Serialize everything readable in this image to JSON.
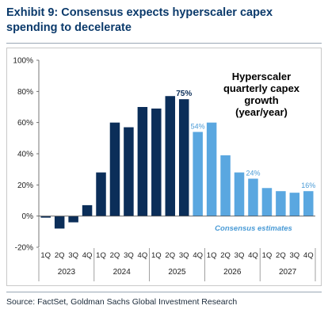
{
  "title": "Exhibit 9: Consensus expects hyperscaler capex spending to decelerate",
  "source": "Source: FactSet, Goldman Sachs Global Investment Research",
  "colors": {
    "title": "#0b3a6b",
    "actual": "#0b2e59",
    "estimate": "#5aa7e0",
    "estimate_label": "#4a9bd6",
    "axis_text": "#222222"
  },
  "chart_data": {
    "type": "bar",
    "title": "Hyperscaler quarterly capex growth (year/year)",
    "title_lines": [
      "Hyperscaler",
      "quarterly capex",
      "growth",
      "(year/year)"
    ],
    "ylim": [
      -0.2,
      1.0
    ],
    "yticks": [
      -0.2,
      0.0,
      0.2,
      0.4,
      0.6,
      0.8,
      1.0
    ],
    "ytick_labels": [
      "-20%",
      "0%",
      "20%",
      "40%",
      "60%",
      "80%",
      "100%"
    ],
    "grid": false,
    "quarters": [
      "1Q",
      "2Q",
      "3Q",
      "4Q",
      "1Q",
      "2Q",
      "3Q",
      "4Q",
      "1Q",
      "2Q",
      "3Q",
      "4Q",
      "1Q",
      "2Q",
      "3Q",
      "4Q",
      "1Q",
      "2Q",
      "3Q",
      "4Q"
    ],
    "years": [
      "2023",
      "2024",
      "2025",
      "2026",
      "2027"
    ],
    "values": [
      -0.01,
      -0.08,
      -0.04,
      0.07,
      0.28,
      0.6,
      0.57,
      0.7,
      0.69,
      0.77,
      0.75,
      0.54,
      0.6,
      0.39,
      0.28,
      0.24,
      0.18,
      0.16,
      0.15,
      0.16
    ],
    "estimate": [
      false,
      false,
      false,
      false,
      false,
      false,
      false,
      false,
      false,
      false,
      false,
      true,
      true,
      true,
      true,
      true,
      true,
      true,
      true,
      true
    ],
    "data_labels": [
      {
        "index": 10,
        "text": "75%",
        "kind": "actual"
      },
      {
        "index": 11,
        "text": "54%",
        "kind": "estimate"
      },
      {
        "index": 15,
        "text": "24%",
        "kind": "estimate"
      },
      {
        "index": 19,
        "text": "16%",
        "kind": "estimate"
      }
    ],
    "annotation": "Consensus estimates"
  }
}
